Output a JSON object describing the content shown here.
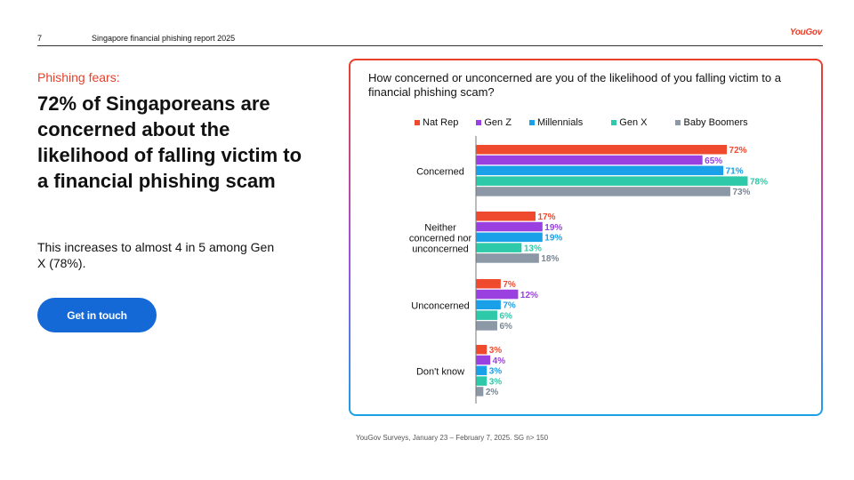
{
  "header": {
    "page_number": "7",
    "report_title": "Singapore financial phishing report 2025",
    "logo": "YouGov"
  },
  "left": {
    "eyebrow": "Phishing fears:",
    "headline": "72% of Singaporeans are concerned about the likelihood of falling victim to a financial phishing scam",
    "subtext": "This increases to almost 4 in 5 among Gen X (78%).",
    "cta_label": "Get in touch"
  },
  "colors": {
    "accent": "#e8402a",
    "cta": "#1469d6"
  },
  "chart_data": {
    "type": "bar",
    "orientation": "horizontal",
    "title": "How concerned or unconcerned are you of the likelihood of you falling victim to a financial phishing scam?",
    "categories": [
      "Concerned",
      "Neither concerned nor unconcerned",
      "Unconcerned",
      "Don't know"
    ],
    "series": [
      {
        "name": "Nat Rep",
        "color": "#f04a2e",
        "values": [
          72,
          17,
          7,
          3
        ]
      },
      {
        "name": "Gen Z",
        "color": "#9a3fe0",
        "values": [
          65,
          19,
          12,
          4
        ]
      },
      {
        "name": "Millennials",
        "color": "#1aa0e8",
        "values": [
          71,
          19,
          7,
          3
        ]
      },
      {
        "name": "Gen X",
        "color": "#2ec9a8",
        "values": [
          78,
          13,
          6,
          3
        ]
      },
      {
        "name": "Baby Boomers",
        "color": "#8c98a6",
        "values": [
          73,
          18,
          6,
          2
        ]
      }
    ],
    "value_suffix": "%",
    "xlim": [
      0,
      80
    ],
    "legend": "top",
    "grid": false
  },
  "footnote": "YouGov Surveys, January 23 – February 7, 2025. SG n> 150"
}
